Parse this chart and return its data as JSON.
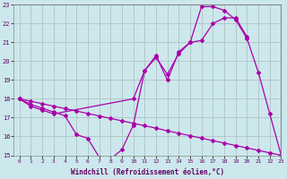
{
  "xlabel": "Windchill (Refroidissement éolien,°C)",
  "xlim": [
    -0.5,
    23
  ],
  "ylim": [
    15,
    23
  ],
  "yticks": [
    15,
    16,
    17,
    18,
    19,
    20,
    21,
    22,
    23
  ],
  "xticks": [
    0,
    1,
    2,
    3,
    4,
    5,
    6,
    7,
    8,
    9,
    10,
    11,
    12,
    13,
    14,
    15,
    16,
    17,
    18,
    19,
    20,
    21,
    22,
    23
  ],
  "bg_color": "#cce8ec",
  "line_color": "#aa00aa",
  "grid_color": "#aabbbb",
  "lines": [
    {
      "x": [
        0,
        1,
        2,
        3,
        4,
        5,
        6,
        7,
        8,
        9,
        10,
        11,
        12,
        13,
        14,
        15,
        16,
        17,
        18,
        19,
        20,
        21,
        22,
        23
      ],
      "y": [
        18,
        17.7,
        17.5,
        17.3,
        17.1,
        16.1,
        15.9,
        14.9,
        14.8,
        15.3,
        16.6,
        19.5,
        20.3,
        19.0,
        20.5,
        21.0,
        22.9,
        22.9,
        22.7,
        22.2,
        21.2,
        19.4,
        17.2,
        15.0
      ]
    },
    {
      "x": [
        0,
        1,
        2,
        3,
        10,
        11,
        12,
        13,
        14,
        15,
        16,
        17,
        18,
        19,
        20
      ],
      "y": [
        18,
        17.6,
        17.4,
        17.2,
        18.0,
        19.5,
        20.2,
        19.3,
        20.4,
        21.0,
        21.1,
        22.0,
        22.3,
        22.3,
        21.3
      ]
    },
    {
      "x": [
        0,
        1,
        2,
        3,
        4,
        5,
        6,
        7,
        8,
        9,
        10,
        11,
        12,
        13,
        14,
        15,
        16,
        17,
        18,
        19,
        20,
        21,
        22,
        23
      ],
      "y": [
        18.0,
        17.87,
        17.74,
        17.61,
        17.48,
        17.35,
        17.22,
        17.09,
        16.96,
        16.83,
        16.7,
        16.57,
        16.44,
        16.3,
        16.17,
        16.04,
        15.91,
        15.78,
        15.65,
        15.52,
        15.39,
        15.26,
        15.13,
        15.0
      ]
    }
  ]
}
